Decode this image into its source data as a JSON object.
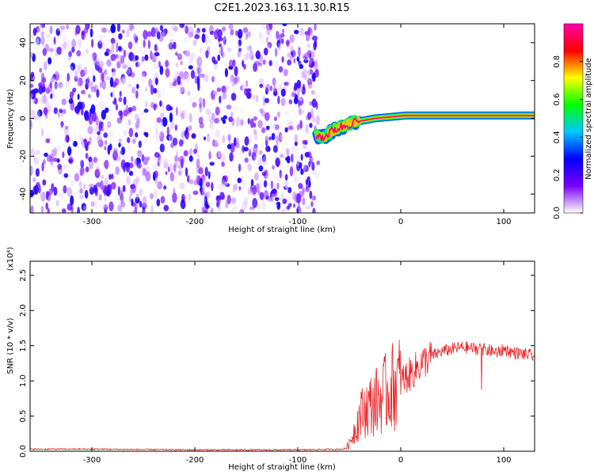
{
  "title": "C2E1.2023.163.11.30.R15",
  "chart_data": [
    {
      "type": "heatmap",
      "xlabel": "Height of straight line (km)",
      "ylabel": "Frequency (Hz)",
      "xlim": [
        -360,
        130
      ],
      "ylim": [
        -50,
        50
      ],
      "x_ticks": [
        -300,
        -200,
        -100,
        0,
        100
      ],
      "x_tick_labels": [
        "-300",
        "-200",
        "-100",
        "0",
        "100"
      ],
      "y_ticks": [
        -40,
        -20,
        0,
        20,
        40
      ],
      "y_tick_labels": [
        "-40",
        "-20",
        "0",
        "20",
        "40"
      ],
      "noise_region": {
        "x_range": [
          -360,
          -80
        ],
        "y_range": [
          -50,
          50
        ],
        "amplitude_range": [
          0.0,
          0.25
        ]
      },
      "signal_trace": {
        "x": [
          -82,
          -75,
          -65,
          -55,
          -45,
          -35,
          -25,
          -15,
          -5,
          5,
          20,
          40,
          60,
          80,
          95,
          110,
          130
        ],
        "y": [
          -9,
          -10,
          -6,
          -4,
          -2,
          -1,
          0,
          0.5,
          1,
          1.5,
          1.5,
          1.5,
          1.5,
          1.5,
          1.5,
          1.5,
          1.5
        ],
        "peak_amplitude": 0.95
      },
      "colorbar": {
        "label": "Normalized spectral amplitude",
        "range": [
          0.0,
          1.0
        ],
        "ticks": [
          0.0,
          0.2,
          0.4,
          0.6,
          0.8
        ],
        "tick_labels": [
          "0.0",
          "0.2",
          "0.4",
          "0.6",
          "0.8"
        ],
        "colors": [
          "#ffffff",
          "#7a00ff",
          "#0000ff",
          "#00c8ff",
          "#00ff00",
          "#ffff00",
          "#ff0000",
          "#ff00aa"
        ]
      },
      "grid": false
    },
    {
      "type": "line",
      "xlabel": "Height of straight line (km)",
      "ylabel": "SNR (10 * v/v)",
      "scale_label": "(x10⁴)",
      "xlim": [
        -360,
        130
      ],
      "ylim": [
        0,
        2.7
      ],
      "x_ticks": [
        -300,
        -200,
        -100,
        0,
        100
      ],
      "x_tick_labels": [
        "-300",
        "-200",
        "-100",
        "0",
        "100"
      ],
      "y_ticks": [
        0.0,
        0.5,
        1.0,
        1.5,
        2.0,
        2.5
      ],
      "y_tick_labels": [
        "0.0",
        "0.5",
        "1.0",
        "1.5",
        "2.0",
        "2.5"
      ],
      "series": [
        {
          "color": "#e8262a",
          "x": [
            -360,
            -300,
            -200,
            -100,
            -55,
            -50,
            -45,
            -40,
            -35,
            -30,
            -25,
            -20,
            -10,
            0,
            10,
            20,
            30,
            40,
            50,
            60,
            70,
            80,
            90,
            95,
            100,
            110,
            120,
            130
          ],
          "y": [
            0.03,
            0.03,
            0.02,
            0.02,
            0.03,
            0.1,
            0.3,
            0.5,
            0.6,
            0.65,
            0.7,
            0.75,
            0.9,
            1.0,
            1.1,
            1.25,
            1.35,
            1.42,
            1.45,
            1.48,
            1.46,
            1.45,
            1.42,
            1.4,
            1.45,
            1.4,
            1.38,
            1.35
          ]
        }
      ],
      "grid": false
    }
  ]
}
